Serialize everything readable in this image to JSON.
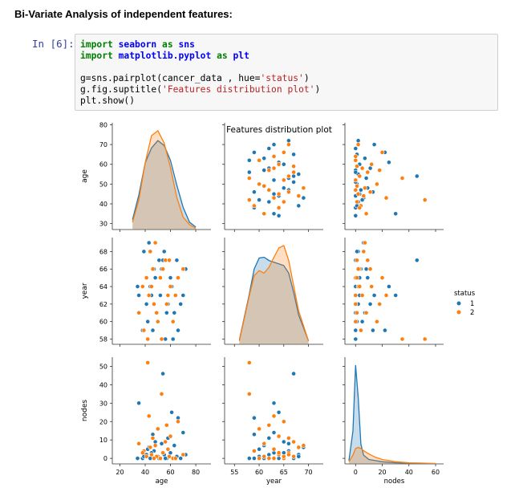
{
  "heading": "Bi-Variate Analysis of independent features:",
  "cell": {
    "prompt": "In [6]:",
    "code_lines": [
      [
        {
          "t": "import",
          "c": "kw"
        },
        {
          "t": " ",
          "c": ""
        },
        {
          "t": "seaborn",
          "c": "mod"
        },
        {
          "t": " ",
          "c": ""
        },
        {
          "t": "as",
          "c": "kw"
        },
        {
          "t": " ",
          "c": ""
        },
        {
          "t": "sns",
          "c": "mod"
        }
      ],
      [
        {
          "t": "import",
          "c": "kw"
        },
        {
          "t": " ",
          "c": ""
        },
        {
          "t": "matplotlib.pyplot",
          "c": "mod"
        },
        {
          "t": " ",
          "c": ""
        },
        {
          "t": "as",
          "c": "kw"
        },
        {
          "t": " ",
          "c": ""
        },
        {
          "t": "plt",
          "c": "mod"
        }
      ],
      [],
      [
        {
          "t": "g=sns.pairplot(cancer_data , hue=",
          "c": ""
        },
        {
          "t": "'status'",
          "c": "str"
        },
        {
          "t": ")",
          "c": ""
        }
      ],
      [
        {
          "t": "g.fig.suptitle(",
          "c": ""
        },
        {
          "t": "'Features distribution plot'",
          "c": "str"
        },
        {
          "t": ")",
          "c": ""
        }
      ],
      [
        {
          "t": "plt.show()",
          "c": ""
        }
      ]
    ]
  },
  "chart_data": {
    "type": "scatter",
    "kind": "pairplot",
    "title": "Features distribution plot",
    "variables": [
      "age",
      "year",
      "nodes"
    ],
    "x_ticks": {
      "age": [
        20,
        40,
        60,
        80
      ],
      "year": [
        55,
        60,
        65,
        70
      ],
      "nodes": [
        0,
        20,
        40,
        60
      ]
    },
    "y_ticks": {
      "age": [
        30,
        40,
        50,
        60,
        70,
        80
      ],
      "year": [
        58,
        60,
        62,
        64,
        66,
        68
      ],
      "nodes": [
        0,
        10,
        20,
        30,
        40,
        50
      ]
    },
    "x_ranges": {
      "age": [
        14,
        92
      ],
      "year": [
        53,
        73
      ],
      "nodes": [
        -8,
        66
      ]
    },
    "y_ranges": {
      "age": [
        27,
        81
      ],
      "year": [
        57.4,
        69.6
      ],
      "nodes": [
        -3,
        55
      ]
    },
    "legend": {
      "title": "status",
      "placement": "right",
      "entries": [
        "1",
        "2"
      ]
    },
    "colors": {
      "1": "#1f77b4",
      "2": "#ff7f0e"
    },
    "kde_age": {
      "x": [
        30,
        35,
        40,
        45,
        50,
        55,
        60,
        65,
        70,
        75,
        80
      ],
      "status_1": [
        0.004,
        0.014,
        0.027,
        0.033,
        0.036,
        0.034,
        0.028,
        0.018,
        0.009,
        0.003,
        0.001
      ],
      "status_2": [
        0.003,
        0.012,
        0.027,
        0.038,
        0.04,
        0.035,
        0.025,
        0.013,
        0.005,
        0.002,
        0.0005
      ]
    },
    "kde_year": {
      "x": [
        56,
        58,
        59,
        60,
        61,
        62,
        63,
        64,
        65,
        66,
        67,
        68,
        70
      ],
      "status_1": [
        0.005,
        0.06,
        0.09,
        0.103,
        0.104,
        0.1,
        0.098,
        0.096,
        0.094,
        0.085,
        0.062,
        0.035,
        0.004
      ],
      "status_2": [
        0.004,
        0.058,
        0.082,
        0.088,
        0.085,
        0.092,
        0.104,
        0.115,
        0.118,
        0.1,
        0.07,
        0.04,
        0.004
      ]
    },
    "kde_nodes": {
      "x": [
        -5,
        -2,
        0,
        2,
        4,
        6,
        10,
        15,
        20,
        30,
        40,
        50,
        60
      ],
      "status_1": [
        0.003,
        0.03,
        0.09,
        0.06,
        0.018,
        0.008,
        0.004,
        0.003,
        0.002,
        0.001,
        0.0005,
        0.0002,
        0.0001
      ],
      "status_2": [
        0.002,
        0.008,
        0.014,
        0.015,
        0.014,
        0.012,
        0.009,
        0.006,
        0.004,
        0.002,
        0.001,
        0.0007,
        0.0004
      ]
    },
    "points": [
      {
        "age": 38,
        "year": 59,
        "nodes": 0,
        "status": "1"
      },
      {
        "age": 41,
        "year": 62,
        "nodes": 2,
        "status": "1"
      },
      {
        "age": 44,
        "year": 64,
        "nodes": 0,
        "status": "1"
      },
      {
        "age": 47,
        "year": 66,
        "nodes": 4,
        "status": "1"
      },
      {
        "age": 50,
        "year": 60,
        "nodes": 1,
        "status": "1"
      },
      {
        "age": 52,
        "year": 63,
        "nodes": 0,
        "status": "1"
      },
      {
        "age": 55,
        "year": 68,
        "nodes": 2,
        "status": "1"
      },
      {
        "age": 57,
        "year": 61,
        "nodes": 0,
        "status": "1"
      },
      {
        "age": 60,
        "year": 65,
        "nodes": 3,
        "status": "1"
      },
      {
        "age": 62,
        "year": 58,
        "nodes": 0,
        "status": "1"
      },
      {
        "age": 65,
        "year": 67,
        "nodes": 1,
        "status": "1"
      },
      {
        "age": 68,
        "year": 62,
        "nodes": 0,
        "status": "1"
      },
      {
        "age": 34,
        "year": 64,
        "nodes": 0,
        "status": "1"
      },
      {
        "age": 43,
        "year": 69,
        "nodes": 6,
        "status": "1"
      },
      {
        "age": 46,
        "year": 59,
        "nodes": 13,
        "status": "1"
      },
      {
        "age": 53,
        "year": 66,
        "nodes": 8,
        "status": "1"
      },
      {
        "age": 58,
        "year": 62,
        "nodes": 11,
        "status": "1"
      },
      {
        "age": 54,
        "year": 67,
        "nodes": 46,
        "status": "1"
      },
      {
        "age": 35,
        "year": 63,
        "nodes": 30,
        "status": "1"
      },
      {
        "age": 61,
        "year": 64,
        "nodes": 25,
        "status": "1"
      },
      {
        "age": 66,
        "year": 59,
        "nodes": 22,
        "status": "1"
      },
      {
        "age": 70,
        "year": 63,
        "nodes": 14,
        "status": "1"
      },
      {
        "age": 48,
        "year": 65,
        "nodes": 9,
        "status": "1"
      },
      {
        "age": 42,
        "year": 60,
        "nodes": 5,
        "status": "1"
      },
      {
        "age": 72,
        "year": 66,
        "nodes": 2,
        "status": "1"
      },
      {
        "age": 39,
        "year": 68,
        "nodes": 1,
        "status": "1"
      },
      {
        "age": 56,
        "year": 58,
        "nodes": 0,
        "status": "1"
      },
      {
        "age": 63,
        "year": 61,
        "nodes": 7,
        "status": "1"
      },
      {
        "age": 45,
        "year": 63,
        "nodes": 3,
        "status": "1"
      },
      {
        "age": 51,
        "year": 67,
        "nodes": 0,
        "status": "1"
      },
      {
        "age": 49,
        "year": 61,
        "nodes": 1,
        "status": "2"
      },
      {
        "age": 52,
        "year": 65,
        "nodes": 0,
        "status": "2"
      },
      {
        "age": 45,
        "year": 64,
        "nodes": 2,
        "status": "2"
      },
      {
        "age": 54,
        "year": 66,
        "nodes": 3,
        "status": "2"
      },
      {
        "age": 47,
        "year": 62,
        "nodes": 0,
        "status": "2"
      },
      {
        "age": 58,
        "year": 63,
        "nodes": 5,
        "status": "2"
      },
      {
        "age": 41,
        "year": 65,
        "nodes": 1,
        "status": "2"
      },
      {
        "age": 62,
        "year": 60,
        "nodes": 0,
        "status": "2"
      },
      {
        "age": 56,
        "year": 67,
        "nodes": 9,
        "status": "2"
      },
      {
        "age": 39,
        "year": 59,
        "nodes": 4,
        "status": "2"
      },
      {
        "age": 60,
        "year": 64,
        "nodes": 12,
        "status": "2"
      },
      {
        "age": 44,
        "year": 68,
        "nodes": 6,
        "status": "2"
      },
      {
        "age": 50,
        "year": 60,
        "nodes": 16,
        "status": "2"
      },
      {
        "age": 66,
        "year": 65,
        "nodes": 20,
        "status": "2"
      },
      {
        "age": 43,
        "year": 63,
        "nodes": 23,
        "status": "2"
      },
      {
        "age": 53,
        "year": 58,
        "nodes": 35,
        "status": "2"
      },
      {
        "age": 57,
        "year": 62,
        "nodes": 18,
        "status": "2"
      },
      {
        "age": 70,
        "year": 66,
        "nodes": 2,
        "status": "2"
      },
      {
        "age": 35,
        "year": 61,
        "nodes": 8,
        "status": "2"
      },
      {
        "age": 64,
        "year": 63,
        "nodes": 0,
        "status": "2"
      },
      {
        "age": 42,
        "year": 58,
        "nodes": 52,
        "status": "2"
      },
      {
        "age": 46,
        "year": 66,
        "nodes": 11,
        "status": "2"
      },
      {
        "age": 59,
        "year": 67,
        "nodes": 1,
        "status": "2"
      },
      {
        "age": 38,
        "year": 64,
        "nodes": 3,
        "status": "2"
      },
      {
        "age": 48,
        "year": 69,
        "nodes": 7,
        "status": "2"
      }
    ]
  }
}
